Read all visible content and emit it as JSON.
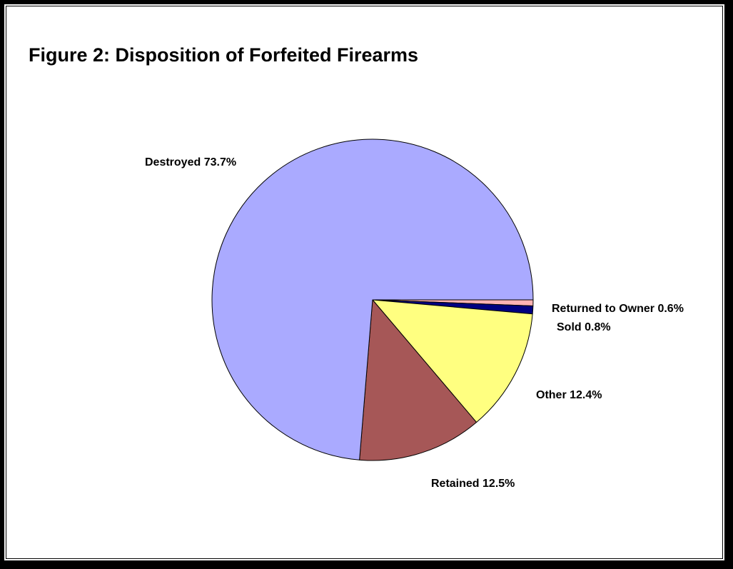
{
  "chart_data": {
    "type": "pie",
    "title": "Figure 2:  Disposition of Forfeited Firearms",
    "start_angle_deg": 0,
    "direction": "clockwise",
    "slices": [
      {
        "name": "Returned to Owner",
        "value": 0.6,
        "label": "Returned to Owner 0.6%",
        "color": "#ffb3b3"
      },
      {
        "name": "Sold",
        "value": 0.8,
        "label": "Sold 0.8%",
        "color": "#000080"
      },
      {
        "name": "Other",
        "value": 12.4,
        "label": "Other 12.4%",
        "color": "#ffff80"
      },
      {
        "name": "Retained",
        "value": 12.5,
        "label": "Retained 12.5%",
        "color": "#a65757"
      },
      {
        "name": "Destroyed",
        "value": 73.7,
        "label": "Destroyed 73.7%",
        "color": "#aaaaff"
      }
    ]
  }
}
